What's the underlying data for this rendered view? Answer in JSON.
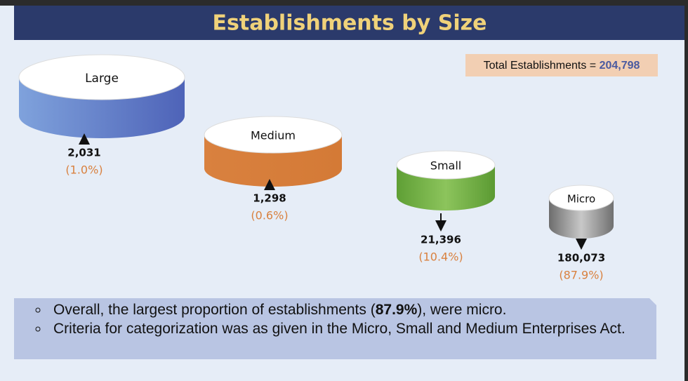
{
  "title": "Establishments by Size",
  "total": {
    "label": "Total Establishments = ",
    "value": "204,798"
  },
  "items": [
    {
      "name": "Large",
      "count": "2,031",
      "share": "(1.0%)"
    },
    {
      "name": "Medium",
      "count": "1,298",
      "share": "(0.6%)"
    },
    {
      "name": "Small",
      "count": "21,396",
      "share": "(10.4%)"
    },
    {
      "name": "Micro",
      "count": "180,073",
      "share": "(87.9%)"
    }
  ],
  "bullets": [
    [
      "Overall, the largest proportion of establishments (",
      "87.9%",
      "), were micro."
    ],
    [
      "Criteria for categorization was as given in the Micro, Small and Medium Enterprises Act."
    ]
  ]
}
